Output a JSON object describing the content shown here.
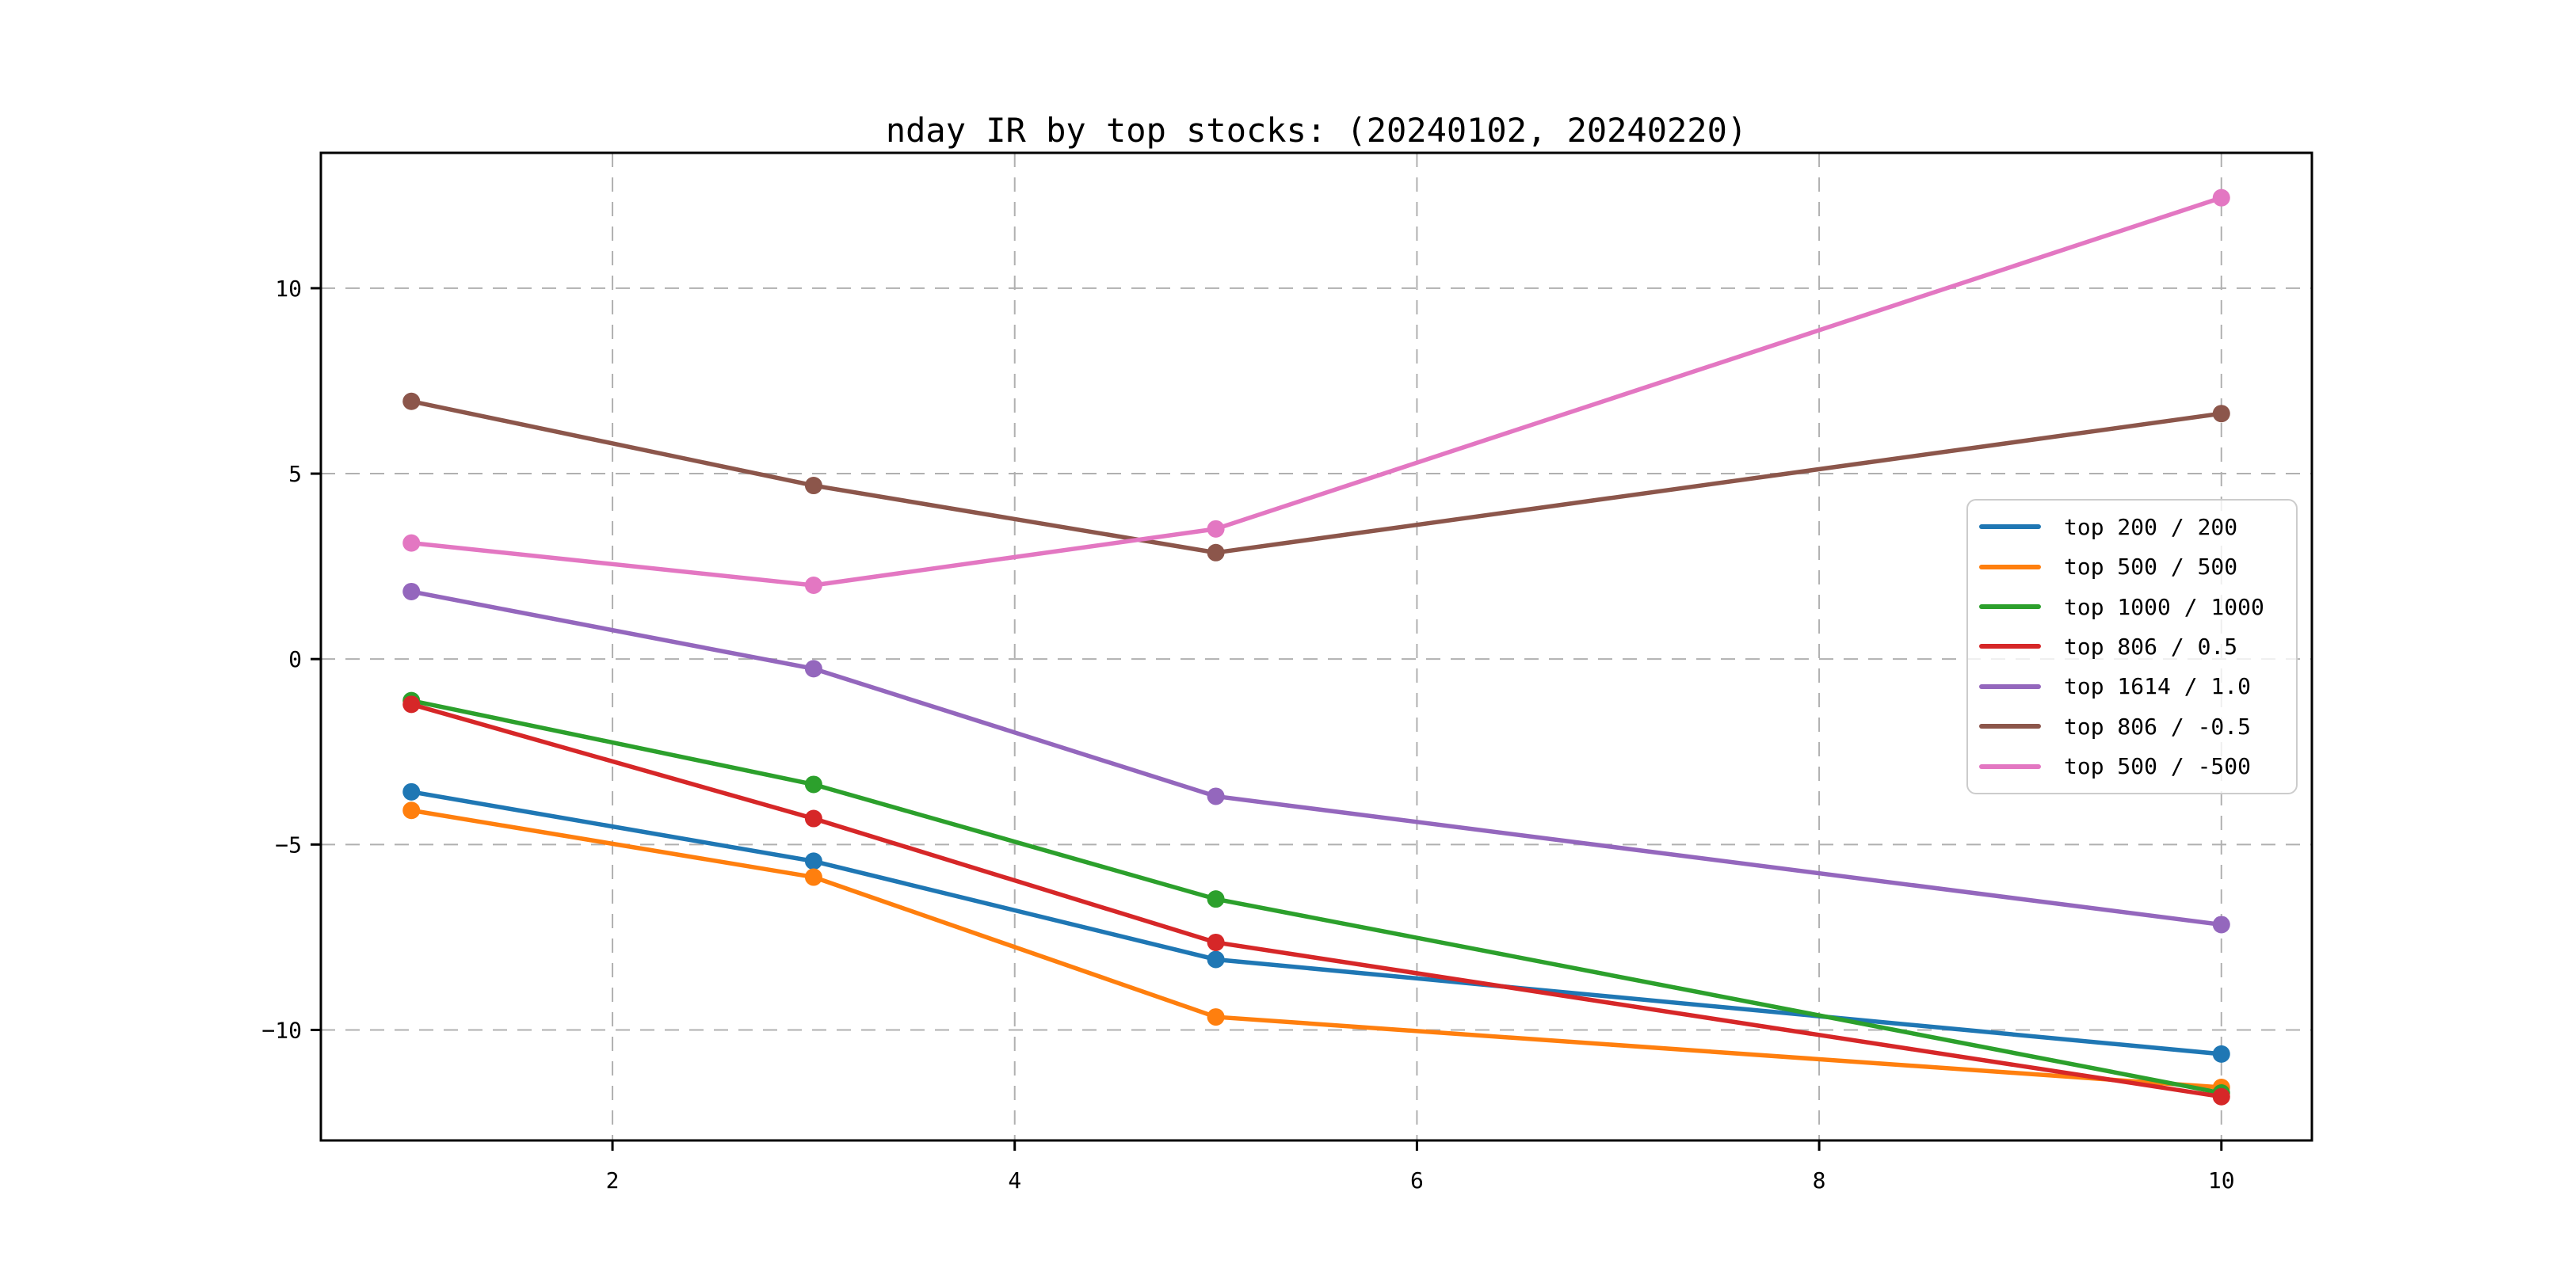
{
  "figure": {
    "background": "#ffffff",
    "text_color": "#000000",
    "spine_color": "#000000",
    "grid_color": "#b0b0b0",
    "legend_border_color": "#cccccc"
  },
  "chart_data": {
    "type": "line",
    "title": "nday IR by top stocks: (20240102, 20240220)",
    "xlabel": "",
    "ylabel": "",
    "x": [
      1,
      3,
      5,
      10
    ],
    "series": [
      {
        "name": "top 200 / 200",
        "color": "#1f77b4",
        "values": [
          -3.58,
          -5.45,
          -8.1,
          -10.65
        ]
      },
      {
        "name": "top 500 / 500",
        "color": "#ff7f0e",
        "values": [
          -4.08,
          -5.88,
          -9.65,
          -11.55
        ]
      },
      {
        "name": "top 1000 / 1000",
        "color": "#2ca02c",
        "values": [
          -1.12,
          -3.38,
          -6.47,
          -11.7
        ]
      },
      {
        "name": "top 806 / 0.5",
        "color": "#d62728",
        "values": [
          -1.22,
          -4.3,
          -7.64,
          -11.8
        ]
      },
      {
        "name": "top 1614 / 1.0",
        "color": "#9467bd",
        "values": [
          1.82,
          -0.26,
          -3.7,
          -7.16
        ]
      },
      {
        "name": "top 806 / -0.5",
        "color": "#8c564b",
        "values": [
          6.95,
          4.68,
          2.87,
          6.62
        ]
      },
      {
        "name": "top 500 / -500",
        "color": "#e377c2",
        "values": [
          3.13,
          1.99,
          3.51,
          12.44
        ]
      }
    ],
    "xticks": [
      2,
      4,
      6,
      8,
      10
    ],
    "yticks": [
      10,
      5,
      0,
      -5,
      -10
    ],
    "xlim": [
      0.55,
      10.45
    ],
    "ylim": [
      -12.98,
      13.65
    ],
    "grid": true,
    "grid_style": "dashed",
    "marker": "o",
    "legend_position": "center right"
  }
}
